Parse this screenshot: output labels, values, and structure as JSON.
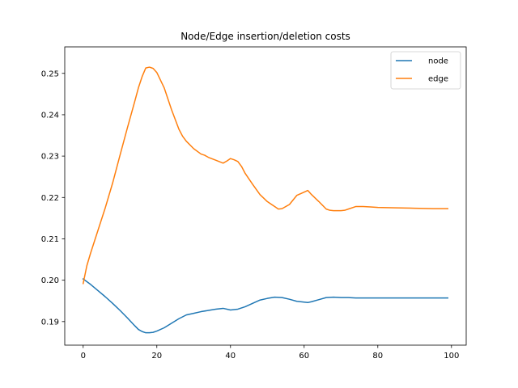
{
  "chart_data": {
    "type": "line",
    "title": "Node/Edge insertion/deletion costs",
    "xlabel": "",
    "ylabel": "",
    "xlim": [
      -5,
      104
    ],
    "ylim": [
      0.1843,
      0.2564
    ],
    "xticks": [
      0,
      20,
      40,
      60,
      80,
      100
    ],
    "yticks": [
      0.19,
      0.2,
      0.21,
      0.22,
      0.23,
      0.24,
      0.25
    ],
    "ytick_labels": [
      "0.19",
      "0.20",
      "0.21",
      "0.22",
      "0.23",
      "0.24",
      "0.25"
    ],
    "grid": false,
    "legend_position": "top-right",
    "series": [
      {
        "name": "node",
        "color": "#1f77b4",
        "x": [
          0,
          2,
          4,
          6,
          8,
          10,
          12,
          14,
          15,
          16,
          17,
          18,
          19,
          20,
          22,
          24,
          26,
          28,
          30,
          32,
          34,
          36,
          38,
          40,
          42,
          44,
          46,
          48,
          50,
          52,
          54,
          56,
          58,
          60,
          61,
          62,
          64,
          66,
          68,
          70,
          72,
          74,
          76,
          78,
          80,
          85,
          90,
          95,
          99
        ],
        "y": [
          0.2003,
          0.199,
          0.1975,
          0.196,
          0.1944,
          0.1927,
          0.1909,
          0.189,
          0.1881,
          0.1876,
          0.1873,
          0.1873,
          0.1874,
          0.1877,
          0.1885,
          0.1896,
          0.1907,
          0.1916,
          0.192,
          0.1924,
          0.1927,
          0.193,
          0.1932,
          0.1928,
          0.193,
          0.1936,
          0.1944,
          0.1952,
          0.1956,
          0.1959,
          0.1958,
          0.1954,
          0.1949,
          0.1947,
          0.1946,
          0.1948,
          0.1953,
          0.1958,
          0.1959,
          0.1958,
          0.1958,
          0.1957,
          0.1957,
          0.1957,
          0.1957,
          0.1957,
          0.1957,
          0.1957,
          0.1957
        ]
      },
      {
        "name": "edge",
        "color": "#ff7f0e",
        "x": [
          0,
          1,
          2,
          4,
          6,
          8,
          10,
          12,
          14,
          15,
          16,
          17,
          18,
          19,
          20,
          22,
          24,
          26,
          27,
          28,
          30,
          32,
          33,
          34,
          36,
          38,
          39,
          40,
          41,
          42,
          43,
          44,
          46,
          48,
          50,
          52,
          53,
          54,
          56,
          58,
          60,
          61,
          62,
          64,
          66,
          67,
          68,
          70,
          71,
          72,
          74,
          76,
          78,
          80,
          85,
          90,
          95,
          99
        ],
        "y": [
          0.1992,
          0.2035,
          0.2065,
          0.212,
          0.2175,
          0.2235,
          0.2302,
          0.2368,
          0.2432,
          0.2465,
          0.2492,
          0.2513,
          0.2515,
          0.2512,
          0.2502,
          0.2465,
          0.2412,
          0.2365,
          0.2348,
          0.2336,
          0.2318,
          0.2305,
          0.2302,
          0.2297,
          0.229,
          0.2283,
          0.2288,
          0.2294,
          0.2291,
          0.2287,
          0.2275,
          0.2258,
          0.2232,
          0.2207,
          0.219,
          0.2178,
          0.2172,
          0.2173,
          0.2183,
          0.2205,
          0.2213,
          0.2217,
          0.2207,
          0.219,
          0.2172,
          0.2169,
          0.2168,
          0.2168,
          0.2169,
          0.2172,
          0.2178,
          0.2178,
          0.2177,
          0.2176,
          0.2175,
          0.2174,
          0.2173,
          0.2173
        ]
      }
    ]
  }
}
